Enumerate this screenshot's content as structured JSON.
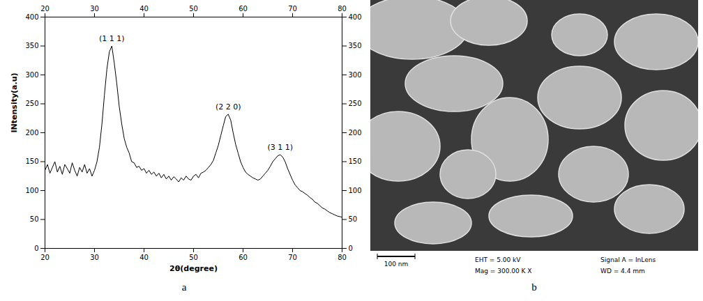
{
  "chart_data": {
    "type": "line",
    "x_label": "2θ(degree)",
    "y_label": "INtensity(a.u)",
    "xlim": [
      20,
      80
    ],
    "xticks": [
      20,
      30,
      40,
      50,
      60,
      70,
      80
    ],
    "ylim": [
      0,
      400
    ],
    "yticks": [
      0,
      50,
      100,
      150,
      200,
      250,
      300,
      350,
      400
    ],
    "grid": false,
    "color": "#000000",
    "x": [
      20,
      20.5,
      21,
      21.5,
      22,
      22.5,
      23,
      23.5,
      24,
      24.5,
      25,
      25.5,
      26,
      26.5,
      27,
      27.5,
      28,
      28.5,
      29,
      29.5,
      30,
      30.5,
      31,
      31.5,
      32,
      32.5,
      33,
      33.5,
      34,
      34.5,
      35,
      35.5,
      36,
      36.5,
      37,
      37.5,
      38,
      38.5,
      39,
      39.5,
      40,
      40.5,
      41,
      41.5,
      42,
      42.5,
      43,
      43.5,
      44,
      44.5,
      45,
      45.5,
      46,
      46.5,
      47,
      47.5,
      48,
      48.5,
      49,
      49.5,
      50,
      50.5,
      51,
      51.5,
      52,
      52.5,
      53,
      53.5,
      54,
      54.5,
      55,
      55.5,
      56,
      56.5,
      57,
      57.5,
      58,
      58.5,
      59,
      59.5,
      60,
      60.5,
      61,
      61.5,
      62,
      62.5,
      63,
      63.5,
      64,
      64.5,
      65,
      65.5,
      66,
      66.5,
      67,
      67.5,
      68,
      68.5,
      69,
      69.5,
      70,
      70.5,
      71,
      71.5,
      72,
      72.5,
      73,
      73.5,
      74,
      74.5,
      75,
      75.5,
      76,
      76.5,
      77,
      77.5,
      78,
      78.5,
      79,
      79.5,
      80
    ],
    "values": [
      135,
      145,
      130,
      140,
      150,
      132,
      142,
      128,
      145,
      138,
      130,
      148,
      135,
      125,
      140,
      132,
      145,
      130,
      138,
      125,
      135,
      150,
      175,
      215,
      265,
      310,
      340,
      350,
      320,
      285,
      245,
      215,
      190,
      175,
      165,
      150,
      148,
      140,
      142,
      135,
      138,
      130,
      135,
      128,
      132,
      125,
      130,
      122,
      128,
      120,
      125,
      118,
      124,
      120,
      115,
      122,
      118,
      125,
      120,
      118,
      125,
      128,
      122,
      130,
      132,
      135,
      140,
      145,
      152,
      165,
      178,
      195,
      212,
      228,
      232,
      222,
      200,
      180,
      165,
      150,
      140,
      132,
      128,
      125,
      122,
      120,
      118,
      120,
      125,
      130,
      135,
      142,
      150,
      155,
      160,
      162,
      158,
      150,
      138,
      128,
      118,
      110,
      105,
      100,
      98,
      95,
      92,
      88,
      85,
      80,
      78,
      74,
      70,
      68,
      65,
      62,
      60,
      58,
      56,
      55,
      54
    ],
    "annotations": [
      {
        "text": "(1 1 1)",
        "x": 33.5,
        "y": 358
      },
      {
        "text": "(2 2 0)",
        "x": 57,
        "y": 240
      },
      {
        "text": "(3 1 1)",
        "x": 67.5,
        "y": 170
      }
    ]
  },
  "panels": {
    "labels": [
      "a",
      "b"
    ],
    "sem_image": {
      "scale_bar": "100 nm",
      "eht": "EHT = 5.00 kV",
      "mag": "Mag = 300.00 K X",
      "signal": "Signal A = InLens",
      "wd": "WD = 4.4 mm"
    }
  }
}
